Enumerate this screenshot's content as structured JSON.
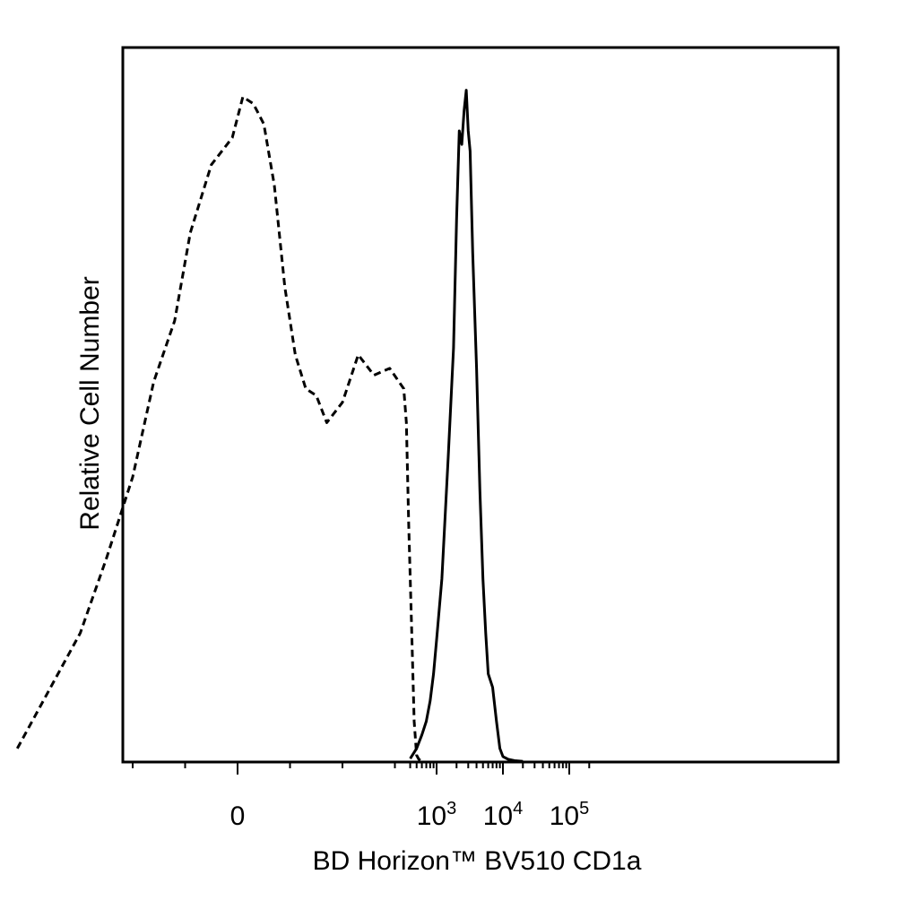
{
  "chart_data": {
    "type": "line",
    "title": "",
    "xlabel": "BD Horizon™ BV510 CD1a",
    "ylabel": "Relative Cell Number",
    "x_scale": "biexponential",
    "x_ticks": [
      {
        "value": 0,
        "label": "0"
      },
      {
        "value": 1000,
        "base": "10",
        "exp": "3"
      },
      {
        "value": 10000,
        "base": "10",
        "exp": "4"
      },
      {
        "value": 100000,
        "base": "10",
        "exp": "5"
      }
    ],
    "xlim": [
      -600,
      250000
    ],
    "ylim": [
      0,
      1.0
    ],
    "y_ticks_shown": false,
    "grid": false,
    "legend": "none",
    "series": [
      {
        "style": "dashed",
        "x": [
          -420,
          -300,
          -250,
          -200,
          -160,
          -120,
          -90,
          -70,
          -50,
          -30,
          -10,
          10,
          30,
          50,
          70,
          90,
          110,
          130,
          150,
          170,
          200,
          230,
          260,
          290,
          320,
          350,
          380,
          420,
          460,
          500,
          540,
          580
        ],
        "y": [
          0.02,
          0.19,
          0.3,
          0.42,
          0.56,
          0.65,
          0.78,
          0.83,
          0.88,
          0.9,
          0.92,
          0.98,
          0.97,
          0.94,
          0.85,
          0.7,
          0.6,
          0.55,
          0.54,
          0.5,
          0.53,
          0.6,
          0.57,
          0.58,
          0.55,
          0.5,
          0.35,
          0.2,
          0.06,
          0.01,
          0.004,
          0.002
        ]
      },
      {
        "style": "solid",
        "x": [
          400,
          500,
          600,
          700,
          800,
          900,
          1000,
          1200,
          1500,
          1800,
          2000,
          2200,
          2400,
          2600,
          2800,
          3000,
          3200,
          3500,
          4000,
          4500,
          5000,
          5500,
          6000,
          7000,
          8000,
          9000,
          10000,
          12000,
          15000,
          20000
        ],
        "y": [
          0.005,
          0.02,
          0.04,
          0.06,
          0.09,
          0.13,
          0.18,
          0.27,
          0.45,
          0.61,
          0.8,
          0.93,
          0.91,
          0.96,
          0.99,
          0.93,
          0.9,
          0.75,
          0.58,
          0.4,
          0.27,
          0.19,
          0.13,
          0.11,
          0.06,
          0.02,
          0.008,
          0.004,
          0.002,
          0.001
        ]
      }
    ]
  }
}
